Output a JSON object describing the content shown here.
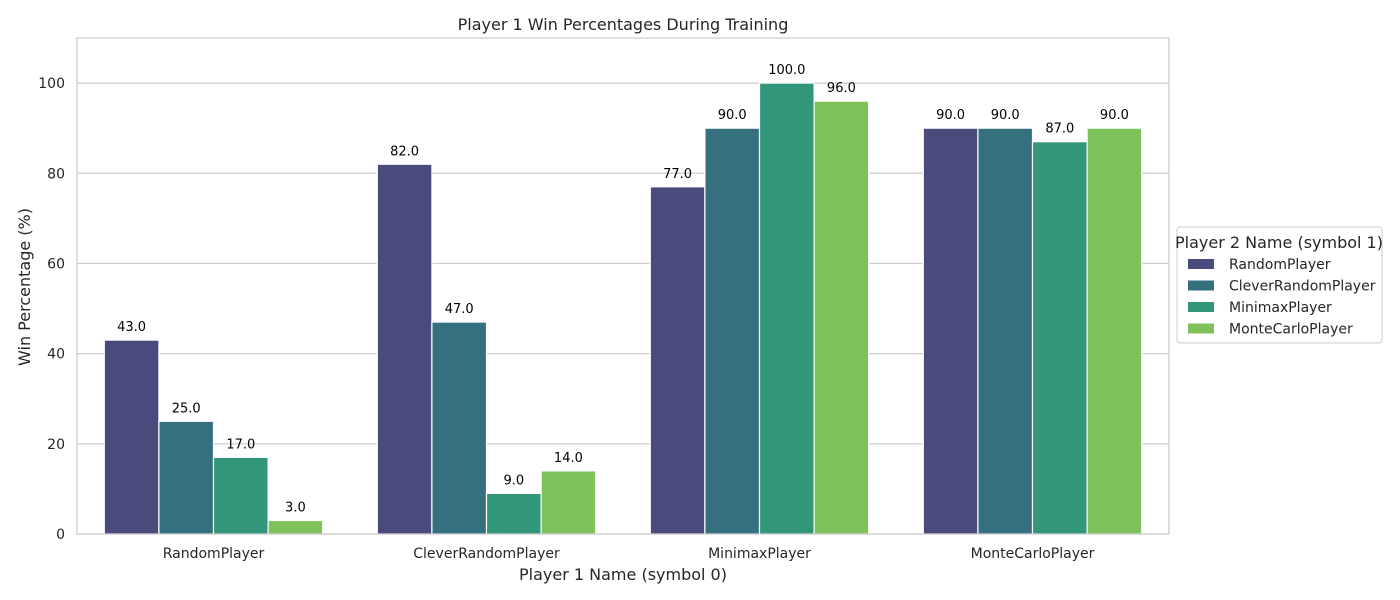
{
  "chart_data": {
    "type": "bar",
    "title": "Player 1 Win Percentages During Training",
    "xlabel": "Player 1 Name (symbol 0)",
    "ylabel": "Win Percentage (%)",
    "ylim": [
      0,
      110
    ],
    "yticks": [
      0,
      20,
      40,
      60,
      80,
      100
    ],
    "grid": true,
    "legend_title": "Player 2 Name (symbol 1)",
    "legend_position": "right",
    "categories": [
      "RandomPlayer",
      "CleverRandomPlayer",
      "MinimaxPlayer",
      "MonteCarloPlayer"
    ],
    "series": [
      {
        "name": "RandomPlayer",
        "color": "#4a4a7c",
        "values": [
          43.0,
          82.0,
          77.0,
          90.0
        ]
      },
      {
        "name": "CleverRandomPlayer",
        "color": "#35707f",
        "values": [
          25.0,
          47.0,
          90.0,
          90.0
        ]
      },
      {
        "name": "MinimaxPlayer",
        "color": "#32977a",
        "values": [
          17.0,
          9.0,
          100.0,
          87.0
        ]
      },
      {
        "name": "MonteCarloPlayer",
        "color": "#7fc25c",
        "values": [
          3.0,
          14.0,
          96.0,
          90.0
        ]
      }
    ]
  }
}
